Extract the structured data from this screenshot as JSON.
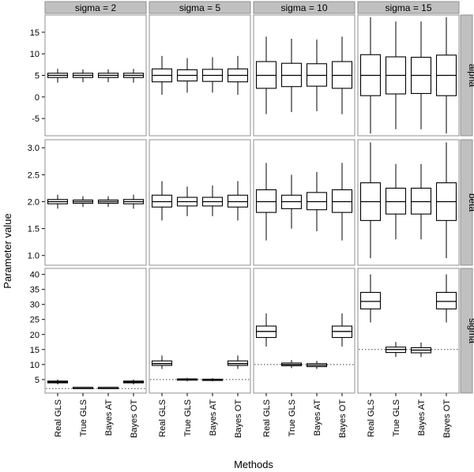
{
  "chart_data": {
    "type": "boxplot",
    "xlabel": "Methods",
    "ylabel": "Parameter value",
    "methods": [
      "Real GLS",
      "True GLS",
      "Bayes AT",
      "Bayes OT"
    ],
    "columns": [
      "sigma = 2",
      "sigma = 5",
      "sigma = 10",
      "sigma = 15"
    ],
    "rows": [
      {
        "label": "alpha",
        "ylim": [
          -9,
          19
        ],
        "ticks": [
          -5,
          0,
          5,
          10,
          15
        ],
        "reference": null,
        "panels": [
          [
            [
              3.3,
              4.5,
              5,
              5.5,
              6.5
            ],
            [
              3.4,
              4.5,
              5,
              5.5,
              6.4
            ],
            [
              3.4,
              4.5,
              5,
              5.5,
              6.4
            ],
            [
              3.3,
              4.5,
              5,
              5.5,
              6.5
            ]
          ],
          [
            [
              0.5,
              3.5,
              5,
              6.5,
              9.5
            ],
            [
              1,
              3.7,
              5,
              6.3,
              9
            ],
            [
              1,
              3.6,
              5,
              6.4,
              9.2
            ],
            [
              0.5,
              3.5,
              5,
              6.5,
              9.5
            ]
          ],
          [
            [
              -4,
              2,
              5,
              8.2,
              14
            ],
            [
              -3.5,
              2.4,
              5,
              7.8,
              13.5
            ],
            [
              -3.3,
              2.5,
              5,
              7.7,
              13.3
            ],
            [
              -4,
              2,
              5,
              8.2,
              14
            ]
          ],
          [
            [
              -8.5,
              0.3,
              5,
              9.8,
              18.5
            ],
            [
              -7.5,
              0.7,
              5,
              9.3,
              17.5
            ],
            [
              -7.5,
              0.8,
              5,
              9.2,
              17.5
            ],
            [
              -8.5,
              0.3,
              5,
              9.7,
              18.5
            ]
          ]
        ]
      },
      {
        "label": "beta",
        "ylim": [
          0.82,
          3.15
        ],
        "ticks": [
          1.0,
          1.5,
          2.0,
          2.5,
          3.0
        ],
        "reference": null,
        "panels": [
          [
            [
              1.87,
              1.96,
              2,
              2.04,
              2.13
            ],
            [
              1.9,
              1.97,
              2,
              2.03,
              2.1
            ],
            [
              1.9,
              1.97,
              2,
              2.03,
              2.1
            ],
            [
              1.87,
              1.96,
              2,
              2.04,
              2.13
            ]
          ],
          [
            [
              1.65,
              1.9,
              2,
              2.12,
              2.38
            ],
            [
              1.73,
              1.92,
              2,
              2.08,
              2.28
            ],
            [
              1.73,
              1.92,
              2,
              2.08,
              2.3
            ],
            [
              1.65,
              1.9,
              2,
              2.12,
              2.38
            ]
          ],
          [
            [
              1.28,
              1.8,
              2,
              2.22,
              2.72
            ],
            [
              1.5,
              1.87,
              2,
              2.12,
              2.5
            ],
            [
              1.45,
              1.85,
              2,
              2.17,
              2.55
            ],
            [
              1.28,
              1.8,
              2,
              2.22,
              2.72
            ]
          ],
          [
            [
              0.95,
              1.65,
              2,
              2.35,
              3.1
            ],
            [
              1.3,
              1.77,
              2,
              2.25,
              2.7
            ],
            [
              1.3,
              1.77,
              2,
              2.25,
              2.7
            ],
            [
              0.95,
              1.65,
              2,
              2.35,
              3.1
            ]
          ]
        ]
      },
      {
        "label": "sigma",
        "ylim": [
          0.5,
          42
        ],
        "ticks": [
          5,
          10,
          15,
          20,
          25,
          30,
          35,
          40
        ],
        "reference": [
          2,
          5,
          10,
          15
        ],
        "panels": [
          [
            [
              3.4,
              3.9,
              4.2,
              4.5,
              5
            ],
            [
              1.9,
              2,
              2,
              2,
              2.1
            ],
            [
              1.9,
              2,
              2,
              2,
              2.1
            ],
            [
              3.4,
              3.9,
              4.2,
              4.5,
              5
            ]
          ],
          [
            [
              8.5,
              9.7,
              10.3,
              11.2,
              13
            ],
            [
              4.4,
              4.8,
              5,
              5.2,
              5.6
            ],
            [
              4.4,
              4.7,
              4.9,
              5.1,
              5.5
            ],
            [
              8.5,
              9.7,
              10.3,
              11.2,
              13
            ]
          ],
          [
            [
              16,
              19,
              21,
              22.8,
              27
            ],
            [
              8.8,
              9.6,
              10,
              10.5,
              11.5
            ],
            [
              8.5,
              9.3,
              9.8,
              10.3,
              11.2
            ],
            [
              16,
              19,
              21,
              22.8,
              27
            ]
          ],
          [
            [
              24,
              28.5,
              31,
              34,
              40
            ],
            [
              12.5,
              14,
              15,
              15.8,
              17.5
            ],
            [
              12.5,
              13.9,
              14.8,
              15.6,
              17.3
            ],
            [
              24,
              28.5,
              31,
              34,
              40
            ]
          ]
        ]
      }
    ]
  }
}
